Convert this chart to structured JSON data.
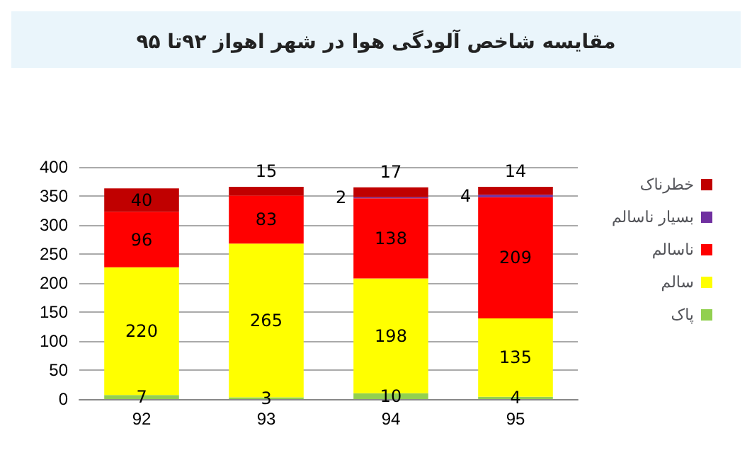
{
  "chart_data": {
    "type": "bar",
    "title": "مقایسه شاخص آلودگی هوا در شهر اهواز ۹۲تا ۹۵",
    "categories": [
      "92",
      "93",
      "94",
      "95"
    ],
    "stacked": true,
    "data_labels": true,
    "grid": "y",
    "legend": "right",
    "ylim": [
      0,
      400
    ],
    "yticks": [
      0,
      50,
      100,
      150,
      200,
      250,
      300,
      350,
      400
    ],
    "series": [
      {
        "name": "پاک",
        "color": "#92d050",
        "values": [
          7,
          3,
          10,
          4
        ]
      },
      {
        "name": "سالم",
        "color": "#ffff00",
        "values": [
          220,
          265,
          198,
          135
        ]
      },
      {
        "name": "ناسالم",
        "color": "#ff0000",
        "values": [
          96,
          83,
          138,
          209
        ]
      },
      {
        "name": "بسیار ناسالم",
        "color": "#7030a0",
        "values": [
          null,
          null,
          2,
          4
        ]
      },
      {
        "name": "خطرناک",
        "color": "#c00000",
        "values": [
          40,
          15,
          17,
          14
        ]
      }
    ]
  }
}
